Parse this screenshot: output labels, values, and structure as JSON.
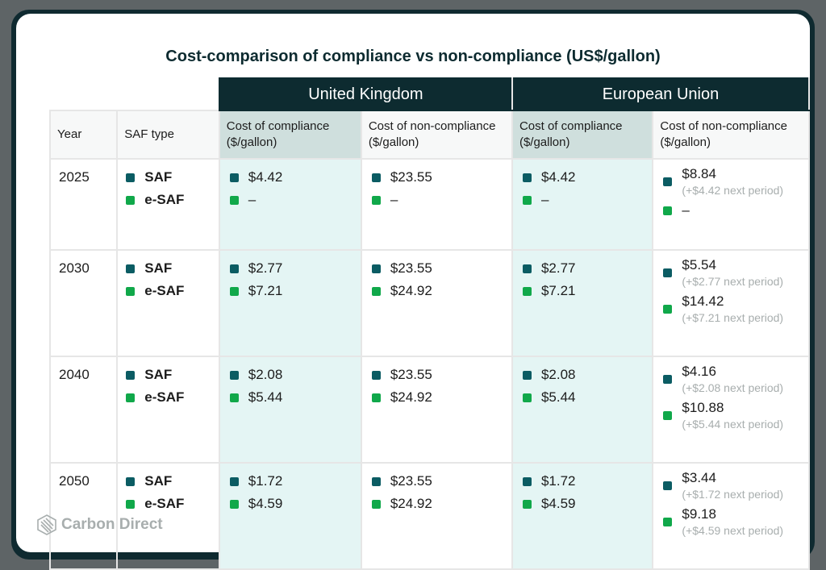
{
  "title": "Cost-comparison of compliance vs non-compliance (US$/gallon)",
  "regions": [
    "United Kingdom",
    "European Union"
  ],
  "headers": {
    "year": "Year",
    "saf_type": "SAF type",
    "compliance": "Cost of compliance ($/gallon)",
    "non_compliance": "Cost of non-compliance ($/gallon)"
  },
  "legend": {
    "saf": "SAF",
    "esaf": "e-SAF",
    "saf_color": "#0b5c63",
    "esaf_color": "#10a84a"
  },
  "rows": [
    {
      "year": "2025",
      "uk_comp": [
        "$4.42",
        "–"
      ],
      "uk_noncomp": [
        "$23.55",
        "–"
      ],
      "eu_comp": [
        "$4.42",
        "–"
      ],
      "eu_noncomp": [
        {
          "v": "$8.84",
          "s": "(+$4.42 next period)"
        },
        {
          "v": "–",
          "s": ""
        }
      ]
    },
    {
      "year": "2030",
      "uk_comp": [
        "$2.77",
        "$7.21"
      ],
      "uk_noncomp": [
        "$23.55",
        "$24.92"
      ],
      "eu_comp": [
        "$2.77",
        "$7.21"
      ],
      "eu_noncomp": [
        {
          "v": "$5.54",
          "s": "(+$2.77 next period)"
        },
        {
          "v": "$14.42",
          "s": "(+$7.21 next period)"
        }
      ]
    },
    {
      "year": "2040",
      "uk_comp": [
        "$2.08",
        "$5.44"
      ],
      "uk_noncomp": [
        "$23.55",
        "$24.92"
      ],
      "eu_comp": [
        "$2.08",
        "$5.44"
      ],
      "eu_noncomp": [
        {
          "v": "$4.16",
          "s": "(+$2.08 next period)"
        },
        {
          "v": "$10.88",
          "s": "(+$5.44 next period)"
        }
      ]
    },
    {
      "year": "2050",
      "uk_comp": [
        "$1.72",
        "$4.59"
      ],
      "uk_noncomp": [
        "$23.55",
        "$24.92"
      ],
      "eu_comp": [
        "$1.72",
        "$4.59"
      ],
      "eu_noncomp": [
        {
          "v": "$3.44",
          "s": "(+$1.72 next period)"
        },
        {
          "v": "$9.18",
          "s": "(+$4.59 next period)"
        }
      ]
    }
  ],
  "logo": "Carbon Direct",
  "chart_data": {
    "type": "table",
    "title": "Cost-comparison of compliance vs non-compliance (US$/gallon)",
    "columns": [
      "Year",
      "SAF type",
      "UK Cost of compliance ($/gallon)",
      "UK Cost of non-compliance ($/gallon)",
      "EU Cost of compliance ($/gallon)",
      "EU Cost of non-compliance ($/gallon)"
    ],
    "rows": [
      [
        "2025",
        "SAF",
        4.42,
        23.55,
        4.42,
        "8.84 (+4.42 next period)"
      ],
      [
        "2025",
        "e-SAF",
        null,
        null,
        null,
        null
      ],
      [
        "2030",
        "SAF",
        2.77,
        23.55,
        2.77,
        "5.54 (+2.77 next period)"
      ],
      [
        "2030",
        "e-SAF",
        7.21,
        24.92,
        7.21,
        "14.42 (+7.21 next period)"
      ],
      [
        "2040",
        "SAF",
        2.08,
        23.55,
        2.08,
        "4.16 (+2.08 next period)"
      ],
      [
        "2040",
        "e-SAF",
        5.44,
        24.92,
        5.44,
        "10.88 (+5.44 next period)"
      ],
      [
        "2050",
        "SAF",
        1.72,
        23.55,
        1.72,
        "3.44 (+1.72 next period)"
      ],
      [
        "2050",
        "e-SAF",
        4.59,
        24.92,
        4.59,
        "9.18 (+4.59 next period)"
      ]
    ]
  }
}
